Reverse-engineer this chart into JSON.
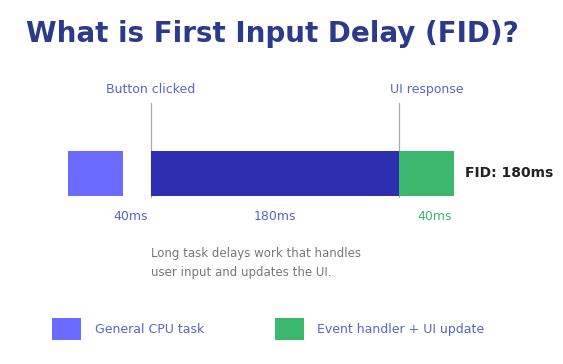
{
  "title": "What is First Input Delay (FID)?",
  "title_color": "#2d3a8c",
  "title_fontsize": 20,
  "background_color": "#ffffff",
  "seg1_color": "#6b6bff",
  "seg2_color": "#2e2eb0",
  "seg3_color": "#3cb86e",
  "vline_color": "#aaaaaa",
  "label_color_blue": "#5566cc",
  "label_color_green": "#3cb86e",
  "fid_label": "FID: 180ms",
  "button_label": "Button clicked",
  "ui_label": "UI response",
  "annotation_text": "Long task delays work that handles\nuser input and updates the UI.",
  "ms_40_label": "40ms",
  "ms_180_label": "180ms",
  "ms_40g_label": "40ms",
  "legend1_label": "General CPU task",
  "legend2_label": "Event handler + UI update",
  "legend1_color": "#6b6bff",
  "legend2_color": "#3cb86e"
}
